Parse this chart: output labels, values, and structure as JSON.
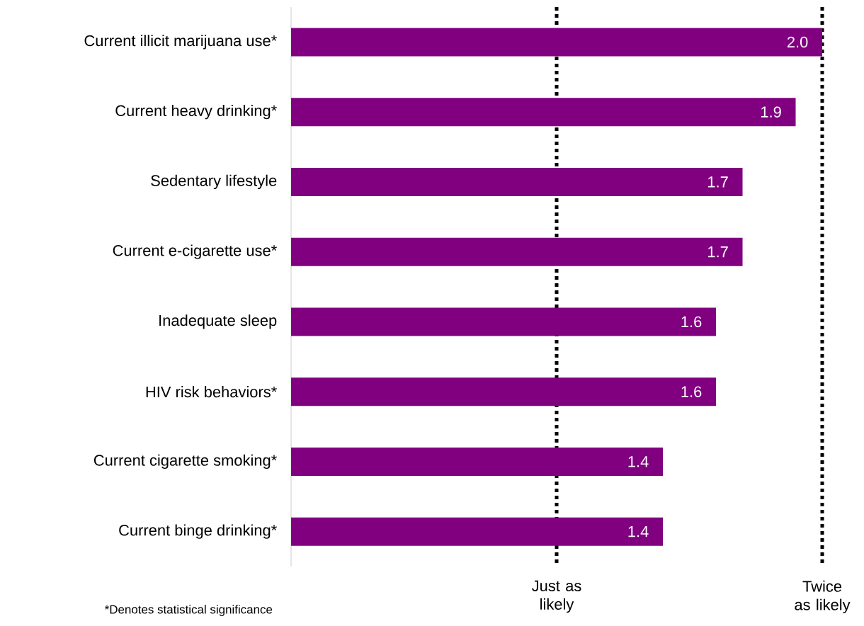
{
  "chart_data": {
    "type": "bar",
    "orientation": "horizontal",
    "categories": [
      "Current illicit marijuana use*",
      "Current heavy drinking*",
      "Sedentary lifestyle",
      "Current e-cigarette use*",
      "Inadequate sleep",
      "HIV risk behaviors*",
      "Current cigarette smoking*",
      "Current binge drinking*"
    ],
    "values": [
      2.0,
      1.9,
      1.7,
      1.7,
      1.6,
      1.6,
      1.4,
      1.4
    ],
    "value_labels": [
      "2.0",
      "1.9",
      "1.7",
      "1.7",
      "1.6",
      "1.6",
      "1.4",
      "1.4"
    ],
    "color": "#800080",
    "tick_labels": "y",
    "ref_lines": [
      {
        "axis": "x",
        "value": 1,
        "label": "Just as likely",
        "color": "#000000",
        "line_style": "dotted"
      },
      {
        "axis": "x",
        "value": 2,
        "label": "Twice as likely",
        "color": "#000000",
        "line_style": "dotted"
      }
    ],
    "annotations": [
      "*Denotes statistical significance"
    ]
  }
}
